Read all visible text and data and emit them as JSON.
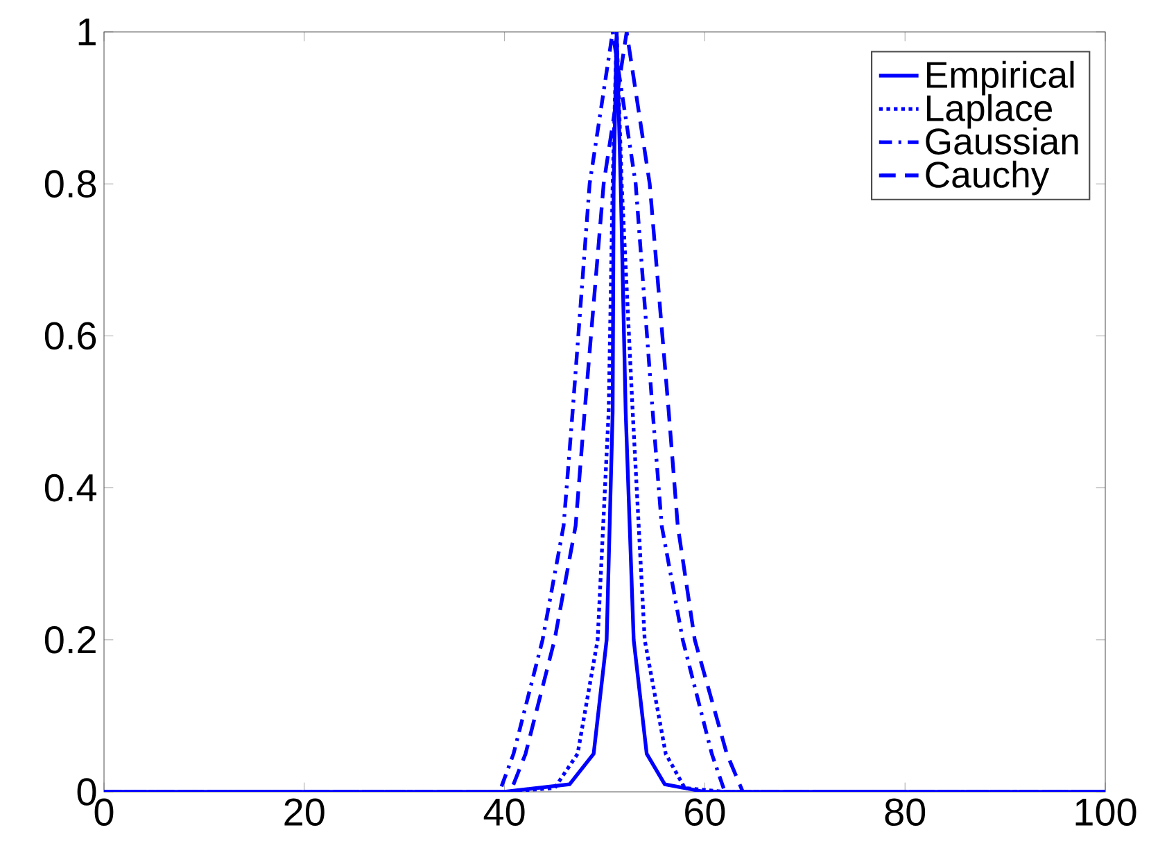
{
  "chart_data": {
    "type": "line",
    "legend": "top right",
    "grid": false,
    "xlim": [
      0,
      100
    ],
    "ylim": [
      0,
      1
    ],
    "xticks": [
      0,
      20,
      40,
      60,
      80,
      100
    ],
    "yticks": [
      0,
      0.2,
      0.4,
      0.6,
      0.8,
      1
    ],
    "series": [
      {
        "name": "Empirical",
        "color": "#0000ff",
        "line_style": "solid",
        "x": [
          0,
          40,
          46.5,
          48.9,
          50.2,
          50.8,
          50.9,
          51.2,
          51.6,
          52.1,
          52.9,
          54.2,
          56,
          60,
          100
        ],
        "values": [
          0,
          0,
          0.01,
          0.05,
          0.2,
          0.5,
          0.8,
          1,
          0.8,
          0.5,
          0.2,
          0.05,
          0.01,
          0,
          0
        ]
      },
      {
        "name": "Laplace",
        "color": "#0000ff",
        "line_style": "dotted",
        "x": [
          0,
          40,
          45,
          47.3,
          49.3,
          50.4,
          50.8,
          51.2,
          51.7,
          52.8,
          54,
          56.1,
          58,
          62,
          100
        ],
        "values": [
          0,
          0,
          0.005,
          0.05,
          0.2,
          0.5,
          0.8,
          1,
          0.8,
          0.5,
          0.2,
          0.05,
          0.005,
          0,
          0
        ]
      },
      {
        "name": "Gaussian",
        "color": "#0000ff",
        "line_style": "dashdot",
        "x": [
          0,
          36,
          39.5,
          40.9,
          43.8,
          45.9,
          46.8,
          48.5,
          50.8,
          53.1,
          54.8,
          55.7,
          57.8,
          60.7,
          62,
          66,
          100
        ],
        "values": [
          0,
          0,
          0,
          0.05,
          0.2,
          0.35,
          0.5,
          0.8,
          1,
          0.8,
          0.5,
          0.35,
          0.2,
          0.05,
          0,
          0,
          0
        ]
      },
      {
        "name": "Cauchy",
        "color": "#0000ff",
        "line_style": "dashed",
        "x": [
          0,
          36,
          40.6,
          42.1,
          45,
          47.1,
          48,
          49.9,
          52.2,
          54.5,
          56.4,
          57.3,
          59,
          62.2,
          63.8,
          68,
          100
        ],
        "values": [
          0,
          0,
          0,
          0.05,
          0.2,
          0.35,
          0.5,
          0.8,
          1,
          0.8,
          0.5,
          0.35,
          0.2,
          0.05,
          0,
          0,
          0
        ]
      }
    ]
  }
}
